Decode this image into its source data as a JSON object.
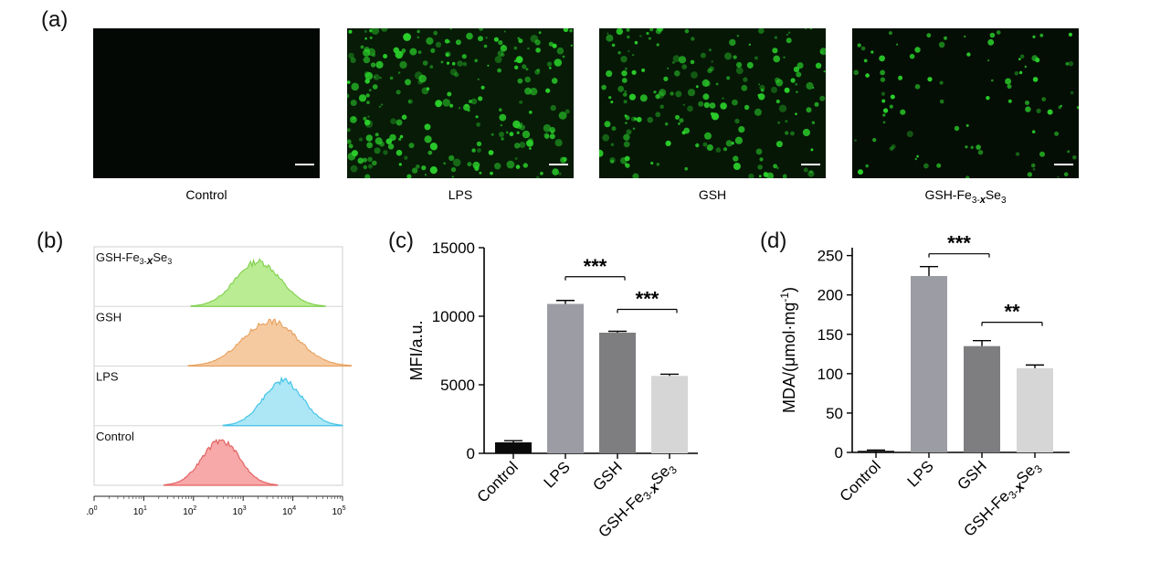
{
  "panel_labels": {
    "a": "(a)",
    "b": "(b)",
    "c": "(c)",
    "d": "(d)"
  },
  "micrographs": [
    {
      "label": "Control",
      "intensity": 0.0
    },
    {
      "label": "LPS",
      "intensity": 0.95
    },
    {
      "label": "GSH",
      "intensity": 0.75
    },
    {
      "label": "GSH-Fe",
      "label_sub1": "3-",
      "label_bold": "x",
      "label_mid": "Se",
      "label_sub2": "3",
      "intensity": 0.35
    }
  ],
  "colors": {
    "fluorescence": "#2bd12b",
    "bar_control": "#0a0a0a",
    "bar_lps": "#9c9ca4",
    "bar_gsh": "#7e7e80",
    "bar_gshfe": "#d6d6d6"
  },
  "chart_data": [
    {
      "type": "area",
      "panel": "b",
      "title": "",
      "xscale": "log",
      "xlim": [
        1,
        100000
      ],
      "x_ticks": [
        "10",
        "10",
        "10",
        "10",
        "10",
        "10"
      ],
      "x_tick_exps": [
        "0",
        "1",
        "2",
        "3",
        "4",
        "5"
      ],
      "series": [
        {
          "name": "GSH-Fe3-xSe3",
          "name_parts": [
            "GSH-Fe",
            "3-",
            "x",
            "Se",
            "3"
          ],
          "color": "#b6ec8e",
          "edge": "#7fcf4a",
          "peak_log": 3.3,
          "width_log": 0.45
        },
        {
          "name": "GSH",
          "name_parts": [
            "GSH"
          ],
          "color": "#f6c89c",
          "edge": "#e79f5a",
          "peak_log": 3.55,
          "width_log": 0.55
        },
        {
          "name": "LPS",
          "name_parts": [
            "LPS"
          ],
          "color": "#a9e6f6",
          "edge": "#3cc0e6",
          "peak_log": 3.8,
          "width_log": 0.4
        },
        {
          "name": "Control",
          "name_parts": [
            "Control"
          ],
          "color": "#f7a4a4",
          "edge": "#e35b5b",
          "peak_log": 2.55,
          "width_log": 0.38
        }
      ]
    },
    {
      "type": "bar",
      "panel": "c",
      "ylabel": "MFI/a.u.",
      "ylim": [
        0,
        15000
      ],
      "y_ticks": [
        "0",
        "5000",
        "10000",
        "15000"
      ],
      "categories": [
        "Control",
        "LPS",
        "GSH",
        "GSH-Fe3-xSe3"
      ],
      "values": [
        800,
        10900,
        8800,
        5650
      ],
      "errors": [
        120,
        250,
        100,
        120
      ],
      "significance": [
        {
          "from": 1,
          "to": 2,
          "label": "***"
        },
        {
          "from": 2,
          "to": 3,
          "label": "***"
        }
      ]
    },
    {
      "type": "bar",
      "panel": "d",
      "ylabel": "MDA/(μmol·mg",
      "ylabel_sup": "-1",
      "ylabel_tail": ")",
      "ylim": [
        0,
        260
      ],
      "y_ticks": [
        "0",
        "50",
        "100",
        "150",
        "200",
        "250"
      ],
      "categories": [
        "Control",
        "LPS",
        "GSH",
        "GSH-Fe3-xSe3"
      ],
      "values": [
        2,
        224,
        135,
        107
      ],
      "errors": [
        1,
        12,
        7,
        4
      ],
      "significance": [
        {
          "from": 1,
          "to": 2,
          "label": "***"
        },
        {
          "from": 2,
          "to": 3,
          "label": "**"
        }
      ]
    }
  ]
}
